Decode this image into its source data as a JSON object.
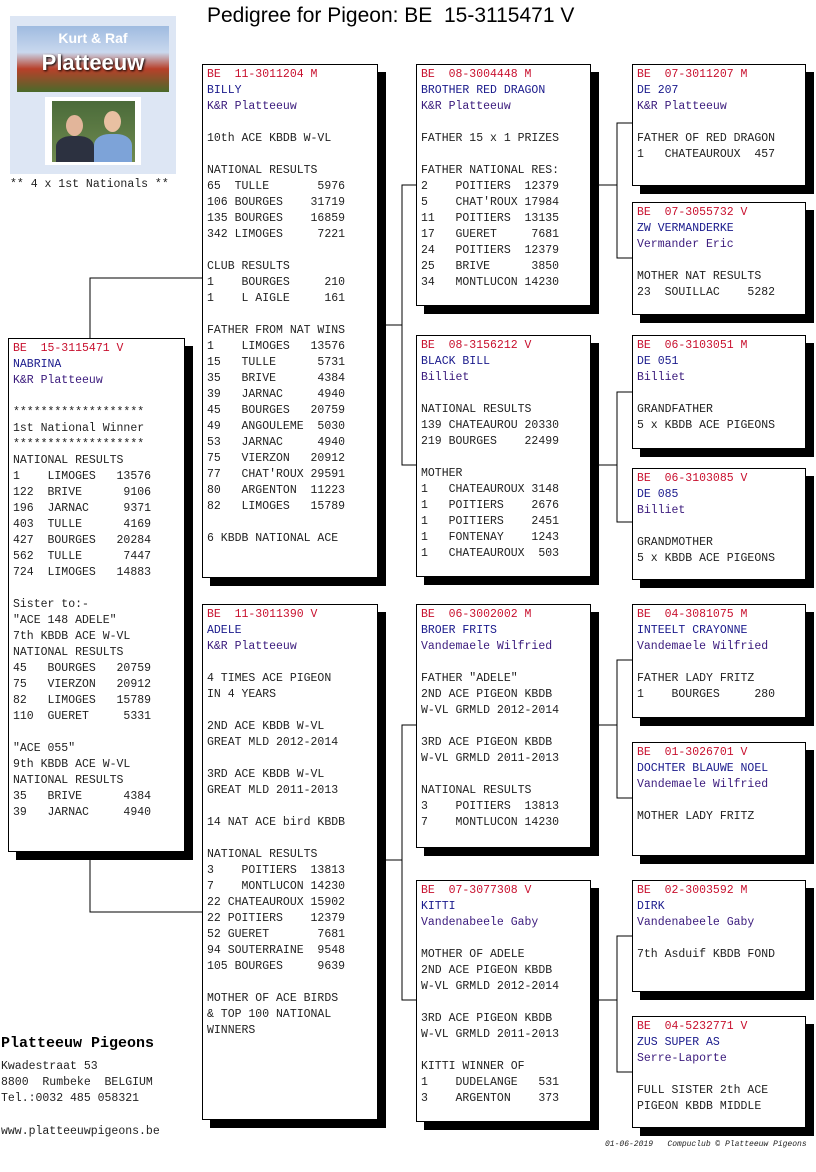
{
  "title": "Pedigree for Pigeon: BE  15-3115471 V",
  "logo": {
    "line1": "Kurt & Raf",
    "line2": "Platteeuw",
    "caption": "** 4 x 1st Nationals **"
  },
  "footer": {
    "name": "Platteeuw Pigeons",
    "street": "Kwadestraat 53",
    "city": "8800  Rumbeke  BELGIUM",
    "phone": "Tel.:0032 485 058321",
    "website": "www.platteeuwpigeons.be",
    "stamp": "01-06-2019   Compuclub © Platteeuw Pigeons"
  },
  "colors": {
    "ring": "#c8102e",
    "name": "#1a1a8c",
    "owner": "#3a1a7c"
  },
  "pigeons": {
    "subject": {
      "ring": "BE  15-3115471 V",
      "name": "NABRINA",
      "owner": "K&R Platteeuw",
      "notes": [
        "",
        "*******************",
        "1st National Winner",
        "*******************",
        "NATIONAL RESULTS",
        "1    LIMOGES   13576",
        "122  BRIVE      9106",
        "196  JARNAC     9371",
        "403  TULLE      4169",
        "427  BOURGES   20284",
        "562  TULLE      7447",
        "724  LIMOGES   14883",
        "",
        "Sister to:-",
        "\"ACE 148 ADELE\"",
        "7th KBDB ACE W-VL",
        "NATIONAL RESULTS",
        "45   BOURGES   20759",
        "75   VIERZON   20912",
        "82   LIMOGES   15789",
        "110  GUERET     5331",
        "",
        "\"ACE 055\"",
        "9th KBDB ACE W-VL",
        "NATIONAL RESULTS",
        "35   BRIVE      4384",
        "39   JARNAC     4940"
      ]
    },
    "sire": {
      "ring": "BE  11-3011204 M",
      "name": "BILLY",
      "owner": "K&R Platteeuw",
      "notes": [
        "",
        "10th ACE KBDB W-VL",
        "",
        "NATIONAL RESULTS",
        "65  TULLE       5976",
        "106 BOURGES    31719",
        "135 BOURGES    16859",
        "342 LIMOGES     7221",
        "",
        "CLUB RESULTS",
        "1    BOURGES     210",
        "1    L AIGLE     161",
        "",
        "FATHER FROM NAT WINS",
        "1    LIMOGES   13576",
        "15   TULLE      5731",
        "35   BRIVE      4384",
        "39   JARNAC     4940",
        "45   BOURGES   20759",
        "49   ANGOULEME  5030",
        "53   JARNAC     4940",
        "75   VIERZON   20912",
        "77   CHAT'ROUX 29591",
        "80   ARGENTON  11223",
        "82   LIMOGES   15789",
        "",
        "6 KBDB NATIONAL ACE"
      ]
    },
    "dam": {
      "ring": "BE  11-3011390 V",
      "name": "ADELE",
      "owner": "K&R Platteeuw",
      "notes": [
        "",
        "4 TIMES ACE PIGEON",
        "IN 4 YEARS",
        "",
        "2ND ACE KBDB W-VL",
        "GREAT MLD 2012-2014",
        "",
        "3RD ACE KBDB W-VL",
        "GREAT MLD 2011-2013",
        "",
        "14 NAT ACE bird KBDB",
        "",
        "NATIONAL RESULTS",
        "3    POITIERS  13813",
        "7    MONTLUCON 14230",
        "22 CHATEAUROUX 15902",
        "22 POITIERS    12379",
        "52 GUERET       7681",
        "94 SOUTERRAINE  9548",
        "105 BOURGES     9639",
        "",
        "MOTHER OF ACE BIRDS",
        "& TOP 100 NATIONAL",
        "WINNERS"
      ]
    },
    "sire_sire": {
      "ring": "BE  08-3004448 M",
      "name": "BROTHER RED DRAGON",
      "owner": "K&R Platteeuw",
      "notes": [
        "",
        "FATHER 15 x 1 PRIZES",
        "",
        "FATHER NATIONAL RES:",
        "2    POITIERS  12379",
        "5    CHAT'ROUX 17984",
        "11   POITIERS  13135",
        "17   GUERET     7681",
        "24   POITIERS  12379",
        "25   BRIVE      3850",
        "34   MONTLUCON 14230"
      ]
    },
    "sire_dam": {
      "ring": "BE  08-3156212 V",
      "name": "BLACK BILL",
      "owner": "Billiet",
      "notes": [
        "",
        "NATIONAL RESULTS",
        "139 CHATEAUROU 20330",
        "219 BOURGES    22499",
        "",
        "MOTHER",
        "1   CHATEAUROUX 3148",
        "1   POITIERS    2676",
        "1   POITIERS    2451",
        "1   FONTENAY    1243",
        "1   CHATEAUROUX  503"
      ]
    },
    "dam_sire": {
      "ring": "BE  06-3002002 M",
      "name": "BROER FRITS",
      "owner": "Vandemaele Wilfried",
      "notes": [
        "",
        "FATHER \"ADELE\"",
        "2ND ACE PIGEON KBDB",
        "W-VL GRMLD 2012-2014",
        "",
        "3RD ACE PIGEON KBDB",
        "W-VL GRMLD 2011-2013",
        "",
        "NATIONAL RESULTS",
        "3    POITIERS  13813",
        "7    MONTLUCON 14230"
      ]
    },
    "dam_dam": {
      "ring": "BE  07-3077308 V",
      "name": "KITTI",
      "owner": "Vandenabeele Gaby",
      "notes": [
        "",
        "MOTHER OF ADELE",
        "2ND ACE PIGEON KBDB",
        "W-VL GRMLD 2012-2014",
        "",
        "3RD ACE PIGEON KBDB",
        "W-VL GRMLD 2011-2013",
        "",
        "KITTI WINNER OF",
        "1    DUDELANGE   531",
        "3    ARGENTON    373"
      ]
    },
    "ss_sire": {
      "ring": "BE  07-3011207 M",
      "name": "DE 207",
      "owner": "K&R Platteeuw",
      "notes": [
        "",
        "FATHER OF RED DRAGON",
        "1   CHATEAUROUX  457"
      ]
    },
    "ss_dam": {
      "ring": "BE  07-3055732 V",
      "name": "ZW VERMANDERKE",
      "owner": "Vermander Eric",
      "notes": [
        "",
        "MOTHER NAT RESULTS",
        "23  SOUILLAC    5282"
      ]
    },
    "sd_sire": {
      "ring": "BE  06-3103051 M",
      "name": "DE 051",
      "owner": "Billiet",
      "notes": [
        "",
        "GRANDFATHER",
        "5 x KBDB ACE PIGEONS"
      ]
    },
    "sd_dam": {
      "ring": "BE  06-3103085 V",
      "name": "DE 085",
      "owner": "Billiet",
      "notes": [
        "",
        "GRANDMOTHER",
        "5 x KBDB ACE PIGEONS"
      ]
    },
    "ds_sire": {
      "ring": "BE  04-3081075 M",
      "name": "INTEELT CRAYONNE",
      "owner": "Vandemaele Wilfried",
      "notes": [
        "",
        "FATHER LADY FRITZ",
        "1    BOURGES     280"
      ]
    },
    "ds_dam": {
      "ring": "BE  01-3026701 V",
      "name": "DOCHTER BLAUWE NOEL",
      "owner": "Vandemaele Wilfried",
      "notes": [
        "",
        "MOTHER LADY FRITZ"
      ]
    },
    "dd_sire": {
      "ring": "BE  02-3003592 M",
      "name": "DIRK",
      "owner": "Vandenabeele Gaby",
      "notes": [
        "",
        "7th Asduif KBDB FOND"
      ]
    },
    "dd_dam": {
      "ring": "BE  04-5232771 V",
      "name": "ZUS SUPER AS",
      "owner": "Serre-Laporte",
      "notes": [
        "",
        "FULL SISTER 2th ACE",
        "PIGEON KBDB MIDDLE"
      ]
    }
  }
}
